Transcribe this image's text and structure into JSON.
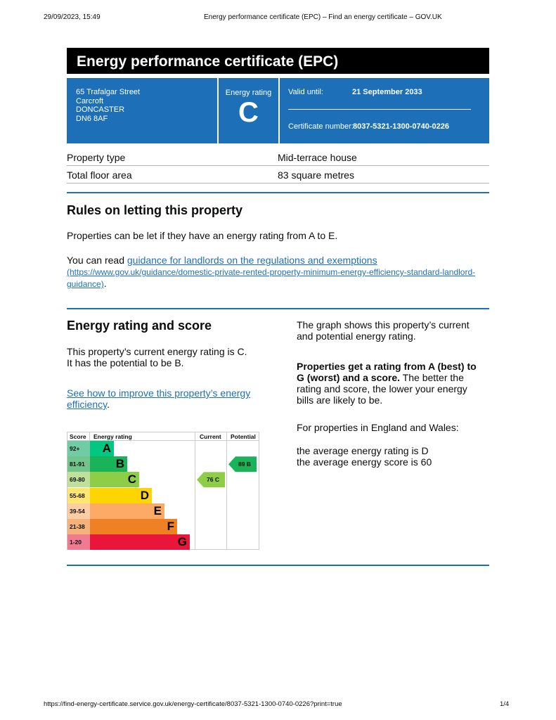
{
  "browser": {
    "timestamp": "29/09/2023, 15:49",
    "page_title": "Energy performance certificate (EPC) – Find an energy certificate – GOV.UK",
    "url": "https://find-energy-certificate.service.gov.uk/energy-certificate/8037-5321-1300-0740-0226?print=true",
    "page_number": "1/4"
  },
  "title": "Energy performance certificate (EPC)",
  "address": [
    "65 Trafalgar Street",
    "Carcroft",
    "DONCASTER",
    "DN6 8AF"
  ],
  "energy_rating": {
    "label": "Energy rating",
    "value": "C"
  },
  "valid_until": {
    "label": "Valid until:",
    "value": "21 September 2033"
  },
  "certificate": {
    "label": "Certificate number:",
    "value": "8037-5321-1300-0740-0226"
  },
  "property": [
    {
      "label": "Property type",
      "value": "Mid-terrace house"
    },
    {
      "label": "Total floor area",
      "value": "83 square metres"
    }
  ],
  "letting": {
    "heading": "Rules on letting this property",
    "text": "Properties can be let if they have an energy rating from A to E.",
    "read_prefix": "You can read ",
    "link": "guidance for landlords on the regulations and exemptions",
    "link_url_text": "(https://www.gov.uk/guidance/domestic-private-rented-property-minimum-energy-efficiency-standard-landlord-guidance)",
    "suffix": "."
  },
  "score_section": {
    "heading": "Energy rating and score",
    "text": "This property’s current energy rating is C. It has the potential to be B.",
    "link": "See how to improve this property’s energy efficiency",
    "suffix": ".",
    "graph_text": "The graph shows this property’s current and potential energy rating.",
    "bold_text": "Properties get a rating from A (best) to G (worst) and a score.",
    "rest_text": " The better the rating and score, the lower your energy bills are likely to be.",
    "region_text": "For properties in England and Wales:",
    "avg_rating": "the average energy rating is D",
    "avg_score": "the average energy score is 60"
  },
  "rating_graph": {
    "headers": {
      "score": "Score",
      "rating": "Energy rating",
      "current": "Current",
      "potential": "Potential"
    },
    "bands": [
      {
        "score": "92+",
        "letter": "A",
        "color": "#00c781",
        "score_bg": "#6fcca4"
      },
      {
        "score": "81-91",
        "letter": "B",
        "color": "#19b459",
        "score_bg": "#70c48c"
      },
      {
        "score": "69-80",
        "letter": "C",
        "color": "#8dce46",
        "score_bg": "#bfe09a"
      },
      {
        "score": "55-68",
        "letter": "D",
        "color": "#ffd500",
        "score_bg": "#ffe670"
      },
      {
        "score": "39-54",
        "letter": "E",
        "color": "#fcaa65",
        "score_bg": "#fdcda3"
      },
      {
        "score": "21-38",
        "letter": "F",
        "color": "#ef8023",
        "score_bg": "#f5b37b"
      },
      {
        "score": "1-20",
        "letter": "G",
        "color": "#e9153b",
        "score_bg": "#f07b90"
      }
    ],
    "current": {
      "score": "76",
      "letter": "C",
      "label": "76  C",
      "color": "#8dce46"
    },
    "potential": {
      "score": "89",
      "letter": "B",
      "label": "89  B",
      "color": "#19b459"
    }
  }
}
